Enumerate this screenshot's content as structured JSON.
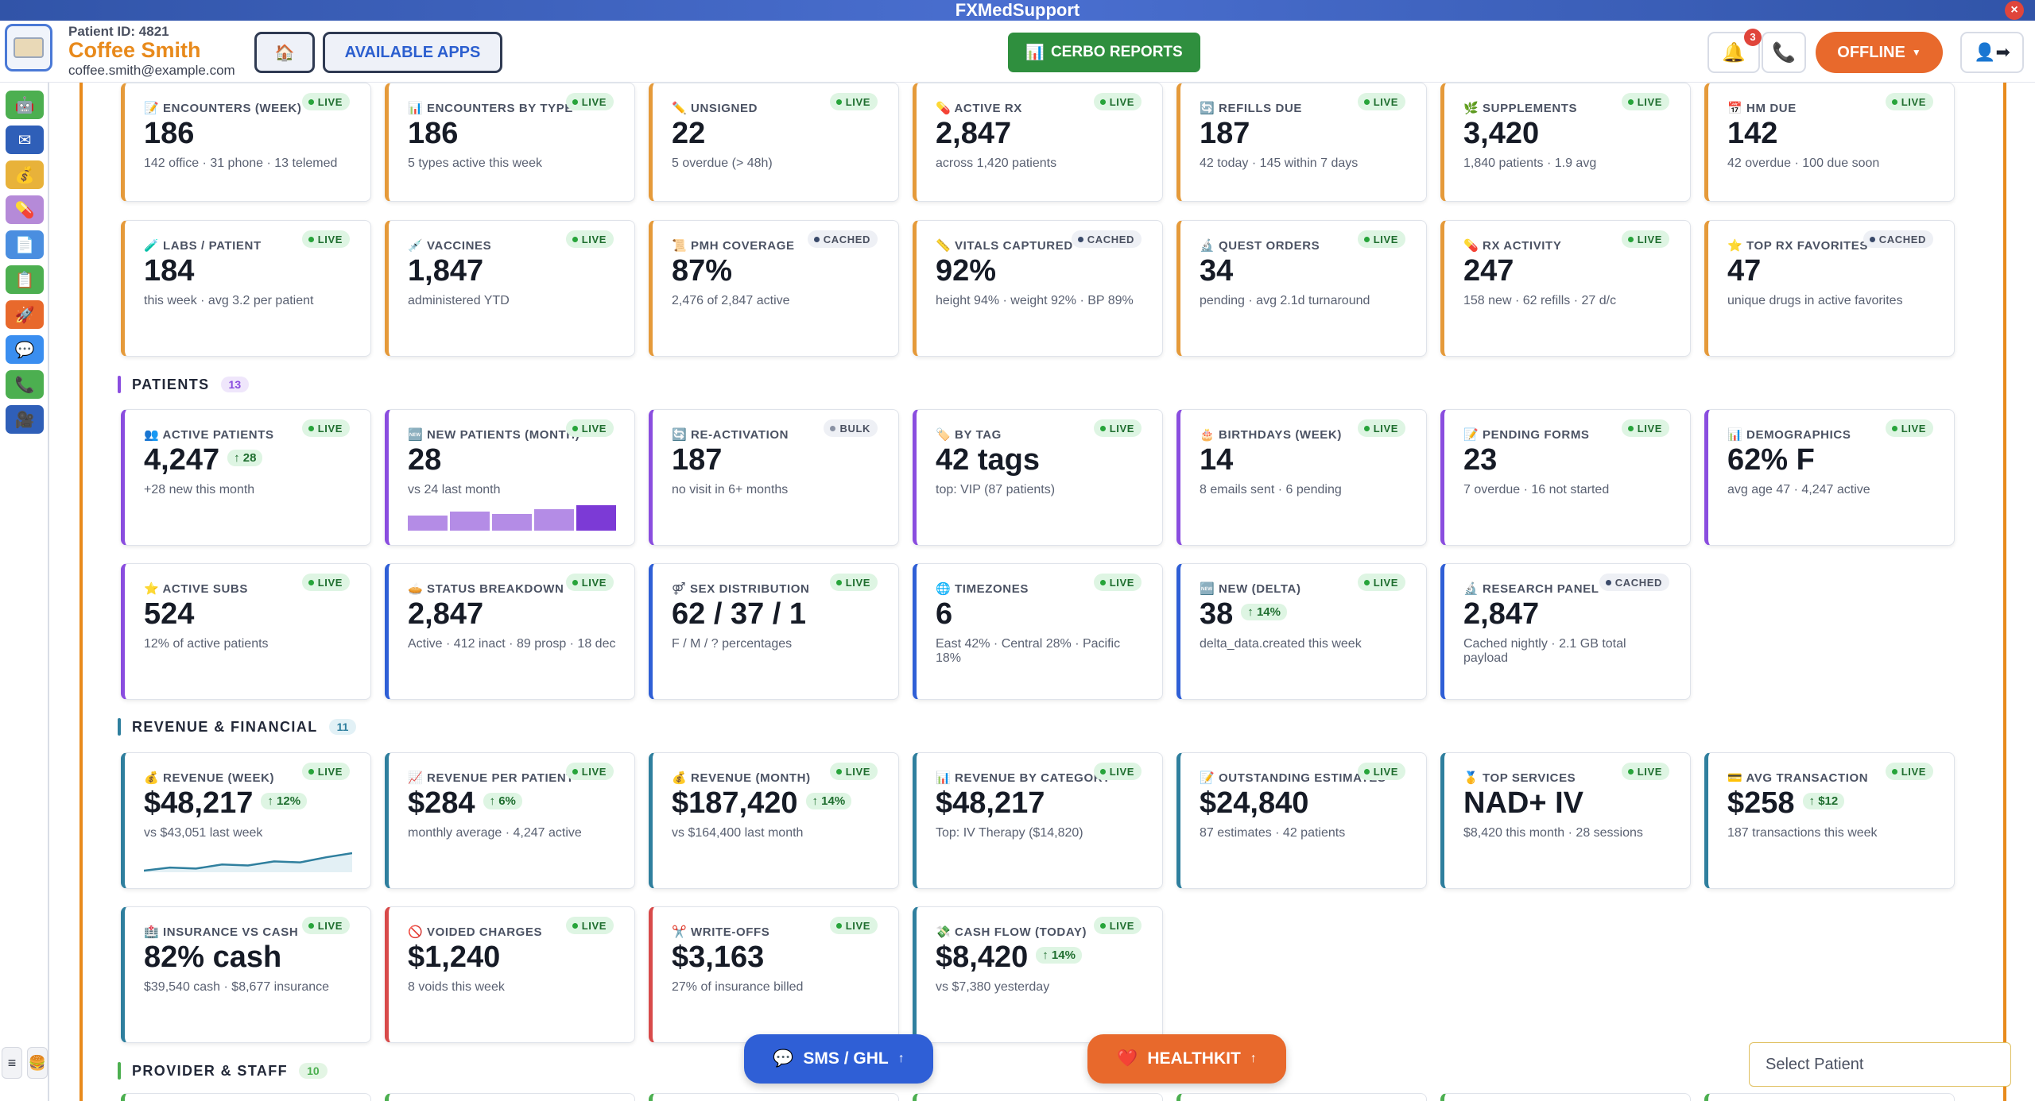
{
  "window": {
    "title": "FXMedSupport",
    "close_icon": "×"
  },
  "header": {
    "patient_id": "Patient ID: 4821",
    "patient_name": "Coffee Smith",
    "patient_email": "coffee.smith@example.com",
    "home_icon": "🏠",
    "apps_label": "AVAILABLE APPS",
    "reports_icon": "📊",
    "reports_label": "CERBO REPORTS",
    "notification_count": "3",
    "bell_icon": "🔔",
    "phone_icon": "📞",
    "status_label": "OFFLINE",
    "status_caret": "▼",
    "switch_icon": "👤➡"
  },
  "sidebar": {
    "items": [
      {
        "icon": "🤖",
        "color": "#4caf50"
      },
      {
        "icon": "✉",
        "color": "#2f5fb8"
      },
      {
        "icon": "💰",
        "color": "#e8b23a"
      },
      {
        "icon": "💊",
        "color": "#b58ad8"
      },
      {
        "icon": "📄",
        "color": "#4a8ee0"
      },
      {
        "icon": "📋",
        "color": "#4caf50"
      },
      {
        "icon": "🚀",
        "color": "#e8692c"
      },
      {
        "icon": "💬",
        "color": "#3a8ef0"
      },
      {
        "icon": "📞",
        "color": "#4caf50"
      },
      {
        "icon": "🎥",
        "color": "#2f5fb8"
      }
    ],
    "menu_icon": "≡",
    "burger_icon": "🍔"
  },
  "sections": {
    "patients": {
      "title": "PATIENTS",
      "count": "13",
      "color": "#8a4ddf",
      "count_bg": "#efe6fb"
    },
    "revenue": {
      "title": "REVENUE & FINANCIAL",
      "count": "11",
      "color": "#2f7f9e",
      "count_bg": "#e2f1f6"
    },
    "provider": {
      "title": "PROVIDER & STAFF",
      "count": "10",
      "color": "#4caf50",
      "count_bg": "#e3f5e4"
    }
  },
  "tiles": {
    "encounters_week": {
      "icon": "📝",
      "label": "ENCOUNTERS (WEEK)",
      "pill": "LIVE",
      "value": "186",
      "sub": "142 office · 31 phone · 13 telemed"
    },
    "encounters_type": {
      "icon": "📊",
      "label": "ENCOUNTERS BY TYPE",
      "pill": "LIVE",
      "value": "186",
      "sub": "5 types active this week"
    },
    "unsigned": {
      "icon": "✏️",
      "label": "UNSIGNED",
      "pill": "LIVE",
      "value": "22",
      "sub": "5 overdue (> 48h)"
    },
    "active_rx": {
      "icon": "💊",
      "label": "ACTIVE RX",
      "pill": "LIVE",
      "value": "2,847",
      "sub": "across 1,420 patients"
    },
    "refills_due": {
      "icon": "🔄",
      "label": "REFILLS DUE",
      "pill": "LIVE",
      "value": "187",
      "sub": "42 today · 145 within 7 days"
    },
    "supplements": {
      "icon": "🌿",
      "label": "SUPPLEMENTS",
      "pill": "LIVE",
      "value": "3,420",
      "sub": "1,840 patients · 1.9 avg"
    },
    "hm_due": {
      "icon": "📅",
      "label": "HM DUE",
      "pill": "LIVE",
      "value": "142",
      "sub": "42 overdue · 100 due soon"
    },
    "labs_patient": {
      "icon": "🧪",
      "label": "LABS / PATIENT",
      "pill": "LIVE",
      "value": "184",
      "sub": "this week · avg 3.2 per patient"
    },
    "vaccines": {
      "icon": "💉",
      "label": "VACCINES",
      "pill": "LIVE",
      "value": "1,847",
      "sub": "administered YTD"
    },
    "pmh_coverage": {
      "icon": "📜",
      "label": "PMH COVERAGE",
      "pill": "CACHED",
      "value": "87%",
      "sub": "2,476 of 2,847 active"
    },
    "vitals_captured": {
      "icon": "📏",
      "label": "VITALS CAPTURED",
      "pill": "CACHED",
      "value": "92%",
      "sub": "height 94% · weight 92% · BP 89%"
    },
    "quest_orders": {
      "icon": "🔬",
      "label": "QUEST ORDERS",
      "pill": "LIVE",
      "value": "34",
      "sub": "pending · avg 2.1d turnaround"
    },
    "rx_activity": {
      "icon": "💊",
      "label": "RX ACTIVITY",
      "pill": "LIVE",
      "value": "247",
      "sub": "158 new · 62 refills · 27 d/c"
    },
    "top_rx": {
      "icon": "⭐",
      "label": "TOP RX FAVORITES",
      "pill": "CACHED",
      "value": "47",
      "sub": "unique drugs in active favorites"
    },
    "active_patients": {
      "icon": "👥",
      "label": "ACTIVE PATIENTS",
      "pill": "LIVE",
      "value": "4,247",
      "delta": "↑ 28",
      "sub": "+28 new this month"
    },
    "new_patients": {
      "icon": "🆕",
      "label": "NEW PATIENTS (MONTH)",
      "pill": "LIVE",
      "value": "28",
      "sub": "vs 24 last month"
    },
    "reactivation": {
      "icon": "🔄",
      "label": "RE-ACTIVATION",
      "pill": "BULK",
      "value": "187",
      "sub": "no visit in 6+ months"
    },
    "by_tag": {
      "icon": "🏷️",
      "label": "BY TAG",
      "pill": "LIVE",
      "value": "42 tags",
      "sub": "top: VIP (87 patients)"
    },
    "birthdays": {
      "icon": "🎂",
      "label": "BIRTHDAYS (WEEK)",
      "pill": "LIVE",
      "value": "14",
      "sub": "8 emails sent · 6 pending"
    },
    "pending_forms": {
      "icon": "📝",
      "label": "PENDING FORMS",
      "pill": "LIVE",
      "value": "23",
      "sub": "7 overdue · 16 not started"
    },
    "demographics": {
      "icon": "📊",
      "label": "DEMOGRAPHICS",
      "pill": "LIVE",
      "value": "62% F",
      "sub": "avg age 47 · 4,247 active"
    },
    "active_subs": {
      "icon": "⭐",
      "label": "ACTIVE SUBS",
      "pill": "LIVE",
      "value": "524",
      "sub": "12% of active patients"
    },
    "status_breakdown": {
      "icon": "🥧",
      "label": "STATUS BREAKDOWN",
      "pill": "LIVE",
      "value": "2,847",
      "sub": "Active · 412 inact · 89 prosp · 18 dec"
    },
    "sex_distribution": {
      "icon": "⚤",
      "label": "SEX DISTRIBUTION",
      "pill": "LIVE",
      "value": "62 / 37 / 1",
      "sub": "F / M / ? percentages"
    },
    "timezones": {
      "icon": "🌐",
      "label": "TIMEZONES",
      "pill": "LIVE",
      "value": "6",
      "sub": "East 42% · Central 28% · Pacific 18%"
    },
    "new_delta": {
      "icon": "🆕",
      "label": "NEW (DELTA)",
      "pill": "LIVE",
      "value": "38",
      "delta": "↑ 14%",
      "sub": "delta_data.created this week"
    },
    "research_panel": {
      "icon": "🔬",
      "label": "RESEARCH PANEL",
      "pill": "CACHED",
      "value": "2,847",
      "sub": "Cached nightly · 2.1 GB total payload"
    },
    "revenue_week": {
      "icon": "💰",
      "label": "REVENUE (WEEK)",
      "pill": "LIVE",
      "value": "$48,217",
      "delta": "↑ 12%",
      "sub": "vs $43,051 last week"
    },
    "revenue_patient": {
      "icon": "📈",
      "label": "REVENUE PER PATIENT",
      "pill": "LIVE",
      "value": "$284",
      "delta": "↑ 6%",
      "sub": "monthly average · 4,247 active"
    },
    "revenue_month": {
      "icon": "💰",
      "label": "REVENUE (MONTH)",
      "pill": "LIVE",
      "value": "$187,420",
      "delta": "↑ 14%",
      "sub": "vs $164,400 last month"
    },
    "revenue_category": {
      "icon": "📊",
      "label": "REVENUE BY CATEGORY",
      "pill": "LIVE",
      "value": "$48,217",
      "sub": "Top: IV Therapy ($14,820)"
    },
    "outstanding": {
      "icon": "📝",
      "label": "OUTSTANDING ESTIMATES",
      "pill": "LIVE",
      "value": "$24,840",
      "sub": "87 estimates · 42 patients"
    },
    "top_services": {
      "icon": "🥇",
      "label": "TOP SERVICES",
      "pill": "LIVE",
      "value": "NAD+ IV",
      "sub": "$8,420 this month · 28 sessions"
    },
    "avg_transaction": {
      "icon": "💳",
      "label": "AVG TRANSACTION",
      "pill": "LIVE",
      "value": "$258",
      "delta": "↑ $12",
      "sub": "187 transactions this week"
    },
    "insurance_cash": {
      "icon": "🏥",
      "label": "INSURANCE VS CASH",
      "pill": "LIVE",
      "value": "82% cash",
      "sub": "$39,540 cash · $8,677 insurance"
    },
    "voided": {
      "icon": "🚫",
      "label": "VOIDED CHARGES",
      "pill": "LIVE",
      "value": "$1,240",
      "sub": "8 voids this week"
    },
    "writeoffs": {
      "icon": "✂️",
      "label": "WRITE-OFFS",
      "pill": "LIVE",
      "value": "$3,163",
      "sub": "27% of insurance billed"
    },
    "cash_flow": {
      "icon": "💸",
      "label": "CASH FLOW (TODAY)",
      "pill": "LIVE",
      "value": "$8,420",
      "delta": "↑ 14%",
      "sub": "vs $7,380 yesterday"
    }
  },
  "new_patients_bars": [
    24,
    30,
    26,
    34,
    40
  ],
  "revenue_spark": [
    5,
    8,
    7,
    11,
    10,
    14,
    13,
    18,
    22
  ],
  "footer": {
    "sms_icon": "💬",
    "sms_label": "SMS / GHL",
    "sms_arrow": "↑",
    "health_icon": "❤️",
    "health_label": "HEALTHKIT",
    "health_arrow": "↑",
    "select_patient": "Select Patient"
  }
}
